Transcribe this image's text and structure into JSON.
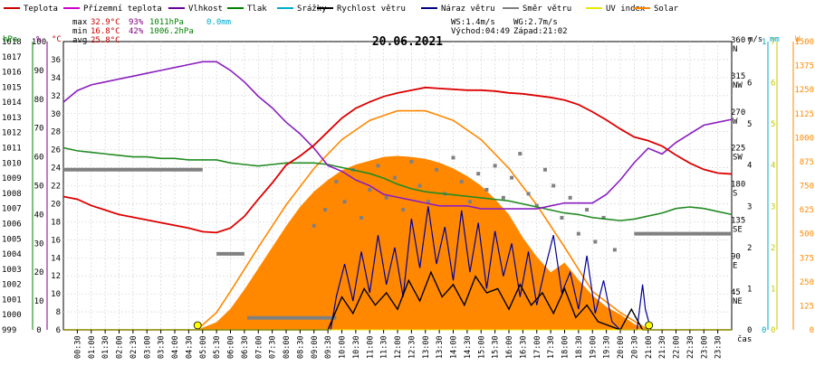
{
  "chart_data": {
    "type": "line",
    "title": "20.06.2021",
    "x_axis": {
      "label": "čas",
      "ticks": [
        "00:30",
        "01:00",
        "01:30",
        "02:00",
        "02:30",
        "03:00",
        "03:30",
        "04:00",
        "04:30",
        "05:00",
        "05:30",
        "06:00",
        "06:30",
        "07:00",
        "07:30",
        "08:00",
        "08:30",
        "09:00",
        "09:30",
        "10:00",
        "10:30",
        "11:00",
        "11:30",
        "12:00",
        "12:30",
        "13:00",
        "13:30",
        "14:00",
        "14:30",
        "15:00",
        "15:30",
        "16:00",
        "16:30",
        "17:00",
        "17:30",
        "18:00",
        "18:30",
        "19:00",
        "19:30",
        "20:00",
        "20:30",
        "21:00",
        "21:30",
        "22:00",
        "22:30",
        "23:00",
        "23:30"
      ],
      "range": [
        0,
        24
      ]
    },
    "y_axes": {
      "pressure": {
        "unit": "hPa",
        "range": [
          999,
          1018
        ],
        "color": "#008000"
      },
      "humidity": {
        "unit": "%",
        "range": [
          0,
          100
        ],
        "color": "#800080"
      },
      "temperature": {
        "unit": "°C",
        "range": [
          6,
          38
        ],
        "ticks": [
          6,
          8,
          10,
          12,
          14,
          16,
          18,
          20,
          22,
          24,
          26,
          28,
          30,
          32,
          34,
          36
        ],
        "color": "#cc0000"
      },
      "wind": {
        "unit": "m/s",
        "range": [
          0,
          7
        ],
        "color": "#000000"
      },
      "rain": {
        "unit": "mm",
        "range": [
          0,
          1
        ],
        "color": "#00aacc"
      },
      "uv": {
        "unit": "",
        "range": [
          0,
          7
        ],
        "color": "#c8c800"
      },
      "solar": {
        "unit": "W",
        "range": [
          0,
          1500
        ],
        "color": "#ff8800"
      },
      "direction_labels": [
        {
          "deg": 360,
          "label": "N"
        },
        {
          "deg": 315,
          "label": "NW"
        },
        {
          "deg": 270,
          "label": "W"
        },
        {
          "deg": 225,
          "label": "SW"
        },
        {
          "deg": 180,
          "label": "S"
        },
        {
          "deg": 135,
          "label": "SE"
        },
        {
          "deg": 90,
          "label": "E"
        },
        {
          "deg": 45,
          "label": "NE"
        }
      ],
      "direction_range": [
        0,
        360
      ]
    },
    "legend": [
      {
        "name": "Teplota",
        "color": "#cc0000"
      },
      {
        "name": "Přízemní teplota",
        "color": "#cc00cc"
      },
      {
        "name": "Vlhkost",
        "color": "#660099"
      },
      {
        "name": "Tlak",
        "color": "#008000"
      },
      {
        "name": "Srážky",
        "color": "#00aacc"
      },
      {
        "name": "Rychlost větru",
        "color": "#000000"
      },
      {
        "name": "Náraz větru",
        "color": "#000080"
      },
      {
        "name": "Směr větru",
        "color": "#808080"
      },
      {
        "name": "UV index",
        "color": "#e8e800"
      },
      {
        "name": "Solar",
        "color": "#ff8800"
      }
    ],
    "stats": {
      "max": {
        "label": "max",
        "temp": "32.9°C",
        "hum": "93%",
        "press": "1011hPa",
        "rain": "0.0mm"
      },
      "min": {
        "label": "min",
        "temp": "16.8°C",
        "hum": "42%",
        "press": "1006.2hPa"
      },
      "avg": {
        "label": "avg",
        "temp": "25.8°C"
      }
    },
    "summary": {
      "ws": "WS:1.4m/s",
      "wg": "WG:2.7m/s",
      "sunrise": "Východ:04:49",
      "sunset": "Západ:21:02"
    },
    "series": {
      "temperature": {
        "x": [
          0,
          0.5,
          1,
          1.5,
          2,
          2.5,
          3,
          3.5,
          4,
          4.5,
          5,
          5.5,
          6,
          6.5,
          7,
          7.5,
          8,
          8.5,
          9,
          9.5,
          10,
          10.5,
          11,
          11.5,
          12,
          12.5,
          13,
          13.5,
          14,
          14.5,
          15,
          15.5,
          16,
          16.5,
          17,
          17.5,
          18,
          18.5,
          19,
          19.5,
          20,
          20.5,
          21,
          21.5,
          22,
          22.5,
          23,
          23.5,
          24
        ],
        "y": [
          20.8,
          20.5,
          19.8,
          19.3,
          18.8,
          18.5,
          18.2,
          17.9,
          17.6,
          17.3,
          16.9,
          16.8,
          17.3,
          18.6,
          20.5,
          22.3,
          24.3,
          25.3,
          26.5,
          28.0,
          29.5,
          30.6,
          31.3,
          31.9,
          32.3,
          32.6,
          32.9,
          32.8,
          32.7,
          32.6,
          32.6,
          32.5,
          32.3,
          32.2,
          32.0,
          31.8,
          31.5,
          31.0,
          30.2,
          29.3,
          28.3,
          27.4,
          27.0,
          26.4,
          25.4,
          24.5,
          23.8,
          23.4,
          23.3
        ]
      },
      "humidity": {
        "x": [
          0,
          0.5,
          1,
          1.5,
          2,
          2.5,
          3,
          3.5,
          4,
          4.5,
          5,
          5.5,
          6,
          6.5,
          7,
          7.5,
          8,
          8.5,
          9,
          9.5,
          10,
          10.5,
          11,
          11.5,
          12,
          12.5,
          13,
          13.5,
          14,
          14.5,
          15,
          15.5,
          16,
          16.5,
          17,
          17.5,
          18,
          18.5,
          19,
          19.5,
          20,
          20.5,
          21,
          21.5,
          22,
          22.5,
          23,
          23.5,
          24
        ],
        "y": [
          79,
          83,
          85,
          86,
          87,
          88,
          89,
          90,
          91,
          92,
          93,
          93,
          90,
          86,
          81,
          77,
          72,
          68,
          63,
          57,
          55,
          52,
          50,
          47,
          46,
          45,
          44,
          43,
          43,
          43,
          42,
          42,
          42,
          42,
          42,
          43,
          44,
          44,
          44,
          47,
          52,
          58,
          63,
          61,
          65,
          68,
          71,
          72,
          73
        ]
      },
      "pressure": {
        "x": [
          0,
          0.5,
          1,
          1.5,
          2,
          2.5,
          3,
          3.5,
          4,
          4.5,
          5,
          5.5,
          6,
          6.5,
          7,
          7.5,
          8,
          8.5,
          9,
          9.5,
          10,
          10.5,
          11,
          11.5,
          12,
          12.5,
          13,
          13.5,
          14,
          14.5,
          15,
          15.5,
          16,
          16.5,
          17,
          17.5,
          18,
          18.5,
          19,
          19.5,
          20,
          20.5,
          21,
          21.5,
          22,
          22.5,
          23,
          23.5,
          24
        ],
        "y": [
          1011.0,
          1010.8,
          1010.7,
          1010.6,
          1010.5,
          1010.4,
          1010.4,
          1010.3,
          1010.3,
          1010.2,
          1010.2,
          1010.2,
          1010.0,
          1009.9,
          1009.8,
          1009.9,
          1010.0,
          1010.0,
          1010.0,
          1009.9,
          1009.7,
          1009.5,
          1009.3,
          1009.0,
          1008.6,
          1008.3,
          1008.1,
          1008.0,
          1007.9,
          1007.8,
          1007.7,
          1007.6,
          1007.5,
          1007.3,
          1007.1,
          1006.9,
          1006.7,
          1006.6,
          1006.4,
          1006.3,
          1006.2,
          1006.3,
          1006.5,
          1006.7,
          1007.0,
          1007.1,
          1007.0,
          1006.8,
          1006.6
        ]
      },
      "wind_speed": {
        "x": [
          0,
          5,
          9.5,
          10,
          10.4,
          10.8,
          11.2,
          11.6,
          12,
          12.4,
          12.8,
          13.2,
          13.6,
          14,
          14.4,
          14.8,
          15.2,
          15.6,
          16,
          16.4,
          16.8,
          17.2,
          17.6,
          18,
          18.4,
          18.8,
          19.2,
          19.6,
          20,
          20.4,
          20.8,
          24
        ],
        "y": [
          0,
          0,
          0,
          0.8,
          0.4,
          1.0,
          0.6,
          0.9,
          0.5,
          1.2,
          0.7,
          1.4,
          0.8,
          1.1,
          0.6,
          1.3,
          0.9,
          1.0,
          0.5,
          1.1,
          0.6,
          0.9,
          0.4,
          1.0,
          0.3,
          0.6,
          0.2,
          0.1,
          0,
          0.5,
          0,
          0
        ]
      },
      "wind_gust": {
        "x": [
          0,
          9.6,
          9.8,
          10.1,
          10.4,
          10.7,
          11,
          11.3,
          11.6,
          11.9,
          12.2,
          12.5,
          12.8,
          13.1,
          13.4,
          13.7,
          14,
          14.3,
          14.6,
          14.9,
          15.2,
          15.5,
          15.8,
          16.1,
          16.4,
          16.7,
          17,
          17.3,
          17.6,
          17.9,
          18.2,
          18.5,
          18.8,
          19.1,
          19.4,
          19.7,
          20,
          20.6,
          20.8,
          20.9,
          21.1,
          24
        ],
        "y": [
          0,
          0,
          0.8,
          1.6,
          0.7,
          1.9,
          0.9,
          2.3,
          1.1,
          2.0,
          0.8,
          2.7,
          1.5,
          3.0,
          1.6,
          2.5,
          1.2,
          2.9,
          1.4,
          2.6,
          1.0,
          2.4,
          1.3,
          2.1,
          0.8,
          1.9,
          0.6,
          1.5,
          2.3,
          0.9,
          1.4,
          0.5,
          1.8,
          0.4,
          1.2,
          0.2,
          0,
          0,
          1.1,
          0.5,
          0,
          0
        ]
      },
      "wind_direction_segments": [
        {
          "x": [
            0,
            5
          ],
          "deg": 200
        },
        {
          "x": [
            5.5,
            6.5
          ],
          "deg": 95
        },
        {
          "x": [
            6.6,
            9.8
          ],
          "deg": 15
        },
        {
          "x": [
            20.5,
            24
          ],
          "deg": 120
        }
      ],
      "wind_direction_points": {
        "x": [
          9.0,
          9.4,
          9.8,
          10.1,
          10.4,
          10.7,
          11.0,
          11.3,
          11.6,
          11.9,
          12.2,
          12.5,
          12.8,
          13.1,
          13.4,
          13.7,
          14.0,
          14.3,
          14.6,
          14.9,
          15.2,
          15.5,
          15.8,
          16.1,
          16.4,
          16.7,
          17.0,
          17.3,
          17.6,
          17.9,
          18.2,
          18.5,
          18.8,
          19.1,
          19.4,
          19.8
        ],
        "y": [
          130,
          150,
          185,
          160,
          200,
          140,
          175,
          205,
          165,
          190,
          150,
          210,
          180,
          160,
          200,
          170,
          215,
          185,
          160,
          195,
          175,
          205,
          165,
          190,
          220,
          170,
          155,
          200,
          180,
          140,
          165,
          120,
          150,
          110,
          140,
          100
        ]
      },
      "solar": {
        "x": [
          0,
          4.8,
          5.5,
          6,
          6.5,
          7,
          7.5,
          8,
          8.5,
          9,
          9.5,
          10,
          10.5,
          11,
          11.5,
          12,
          12.5,
          13,
          13.5,
          14,
          14.5,
          15,
          15.5,
          16,
          16.5,
          17,
          17.5,
          18,
          18.5,
          19,
          19.5,
          20,
          20.5,
          21,
          24
        ],
        "y": [
          0,
          0,
          40,
          110,
          210,
          320,
          430,
          540,
          640,
          720,
          780,
          830,
          860,
          880,
          900,
          905,
          900,
          890,
          870,
          840,
          800,
          750,
          680,
          600,
          480,
          380,
          300,
          350,
          260,
          180,
          120,
          80,
          30,
          0,
          0
        ]
      },
      "solar_theoretical": {
        "x": [
          4.8,
          5.5,
          6,
          7,
          8,
          9,
          10,
          11,
          12,
          13,
          14,
          15,
          16,
          17,
          18,
          19,
          20,
          21
        ],
        "y": [
          0,
          90,
          200,
          430,
          650,
          840,
          990,
          1090,
          1140,
          1140,
          1090,
          990,
          840,
          650,
          430,
          200,
          90,
          0
        ]
      },
      "uv": {
        "x": [
          0,
          24
        ],
        "y": [
          0,
          0
        ]
      },
      "rain": {
        "x": [
          0,
          24
        ],
        "y": [
          0,
          0
        ]
      },
      "sun_events": [
        4.82,
        21.03
      ]
    }
  }
}
